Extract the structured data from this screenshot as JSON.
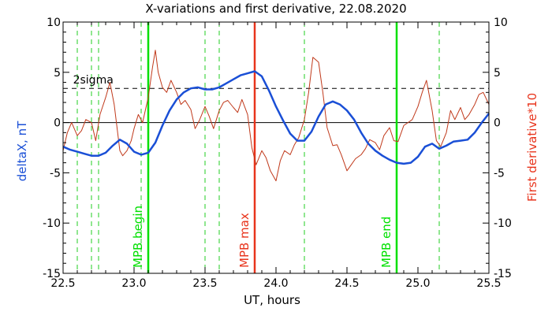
{
  "chart_data": {
    "type": "line",
    "title": "X-variations and first derivative, 22.08.2020",
    "xlabel": "UT, hours",
    "ylabel_left": "deltaX, nT",
    "ylabel_right": "First derivative*10",
    "xlim": [
      22.5,
      25.5
    ],
    "ylim": [
      -15,
      10
    ],
    "x_ticks": [
      22.5,
      23.0,
      23.5,
      24.0,
      24.5,
      25.0,
      25.5
    ],
    "x_tick_labels": [
      "22.5",
      "23.0",
      "23.5",
      "24.0",
      "24.5",
      "25.0",
      "25.5"
    ],
    "y_ticks": [
      -15,
      -10,
      -5,
      0,
      5,
      10
    ],
    "y_tick_labels": [
      "-15",
      "-10",
      "-5",
      "0",
      "5",
      "10"
    ],
    "grid": false,
    "colors": {
      "deltaX": "#1a4fd6",
      "derivative": "#c0391b",
      "mpb_marker": "#00e000",
      "max_marker": "#e8341c",
      "dashed_green": "#22cc22",
      "threshold": "#000000",
      "left_label": "#1a4fd6",
      "right_label": "#e8341c"
    },
    "threshold": {
      "label": "2sigma",
      "y": 3.4
    },
    "zero_line": 0,
    "dashed_vlines": [
      22.6,
      22.7,
      22.75,
      23.05,
      23.5,
      23.6,
      24.2,
      25.15
    ],
    "markers": [
      {
        "x": 23.1,
        "label": "MPB begin",
        "kind": "mpb"
      },
      {
        "x": 23.85,
        "label": "MPB max",
        "kind": "max"
      },
      {
        "x": 24.85,
        "label": "MPB end",
        "kind": "mpb"
      }
    ],
    "series": [
      {
        "key": "deltaX",
        "x": [
          22.5,
          22.55,
          22.6,
          22.65,
          22.7,
          22.75,
          22.8,
          22.85,
          22.9,
          22.95,
          23.0,
          23.05,
          23.1,
          23.15,
          23.2,
          23.25,
          23.3,
          23.35,
          23.4,
          23.45,
          23.5,
          23.55,
          23.6,
          23.65,
          23.7,
          23.75,
          23.8,
          23.85,
          23.9,
          23.95,
          24.0,
          24.05,
          24.1,
          24.15,
          24.2,
          24.25,
          24.3,
          24.35,
          24.4,
          24.45,
          24.5,
          24.55,
          24.6,
          24.65,
          24.7,
          24.75,
          24.8,
          24.85,
          24.9,
          24.95,
          25.0,
          25.05,
          25.1,
          25.15,
          25.2,
          25.25,
          25.3,
          25.35,
          25.4,
          25.45,
          25.5
        ],
        "y": [
          -2.4,
          -2.7,
          -2.9,
          -3.1,
          -3.3,
          -3.3,
          -3.0,
          -2.3,
          -1.7,
          -2.1,
          -2.9,
          -3.2,
          -3.0,
          -2.0,
          -0.3,
          1.2,
          2.3,
          3.0,
          3.4,
          3.5,
          3.3,
          3.3,
          3.5,
          3.9,
          4.3,
          4.7,
          4.9,
          5.1,
          4.6,
          3.2,
          1.6,
          0.2,
          -1.1,
          -1.8,
          -1.8,
          -0.9,
          0.6,
          1.8,
          2.1,
          1.8,
          1.2,
          0.3,
          -1.0,
          -2.1,
          -2.8,
          -3.3,
          -3.7,
          -4.0,
          -4.1,
          -4.0,
          -3.4,
          -2.4,
          -2.1,
          -2.6,
          -2.3,
          -1.9,
          -1.8,
          -1.7,
          -1.0,
          0.0,
          0.9
        ]
      },
      {
        "key": "derivative",
        "x": [
          22.5,
          22.53,
          22.56,
          22.6,
          22.63,
          22.66,
          22.7,
          22.73,
          22.76,
          22.8,
          22.83,
          22.86,
          22.9,
          22.92,
          22.95,
          22.98,
          23.0,
          23.03,
          23.06,
          23.1,
          23.13,
          23.15,
          23.17,
          23.2,
          23.23,
          23.26,
          23.3,
          23.33,
          23.36,
          23.4,
          23.43,
          23.46,
          23.5,
          23.53,
          23.56,
          23.6,
          23.63,
          23.66,
          23.7,
          23.73,
          23.76,
          23.8,
          23.83,
          23.86,
          23.9,
          23.93,
          23.96,
          24.0,
          24.03,
          24.06,
          24.1,
          24.13,
          24.16,
          24.2,
          24.23,
          24.26,
          24.3,
          24.33,
          24.36,
          24.4,
          24.43,
          24.46,
          24.5,
          24.53,
          24.56,
          24.6,
          24.63,
          24.66,
          24.7,
          24.73,
          24.76,
          24.8,
          24.83,
          24.86,
          24.9,
          24.93,
          24.96,
          25.0,
          25.03,
          25.06,
          25.1,
          25.13,
          25.16,
          25.2,
          25.23,
          25.26,
          25.3,
          25.33,
          25.36,
          25.4,
          25.43,
          25.46,
          25.5
        ],
        "y": [
          -2.8,
          -1.0,
          0.0,
          -1.3,
          -0.8,
          0.3,
          0.0,
          -1.8,
          0.8,
          2.5,
          4.0,
          1.8,
          -2.8,
          -3.3,
          -2.8,
          -1.8,
          -0.6,
          0.8,
          0.0,
          2.5,
          5.5,
          7.2,
          5.0,
          3.5,
          3.0,
          4.2,
          3.0,
          1.8,
          2.2,
          1.3,
          -0.6,
          0.2,
          1.6,
          0.6,
          -0.6,
          1.2,
          2.0,
          2.2,
          1.5,
          1.0,
          2.3,
          0.8,
          -2.5,
          -4.2,
          -2.8,
          -3.5,
          -4.8,
          -5.8,
          -3.8,
          -2.8,
          -3.2,
          -2.2,
          -1.5,
          0.3,
          3.0,
          6.5,
          6.0,
          3.0,
          -0.5,
          -2.3,
          -2.2,
          -3.2,
          -4.8,
          -4.2,
          -3.6,
          -3.2,
          -2.6,
          -1.7,
          -2.0,
          -2.7,
          -1.3,
          -0.5,
          -1.8,
          -1.9,
          -0.3,
          0.0,
          0.3,
          1.6,
          3.0,
          4.2,
          1.2,
          -1.8,
          -2.4,
          -1.0,
          1.2,
          0.3,
          1.5,
          0.3,
          0.8,
          1.8,
          2.8,
          3.0,
          1.8
        ]
      }
    ]
  }
}
